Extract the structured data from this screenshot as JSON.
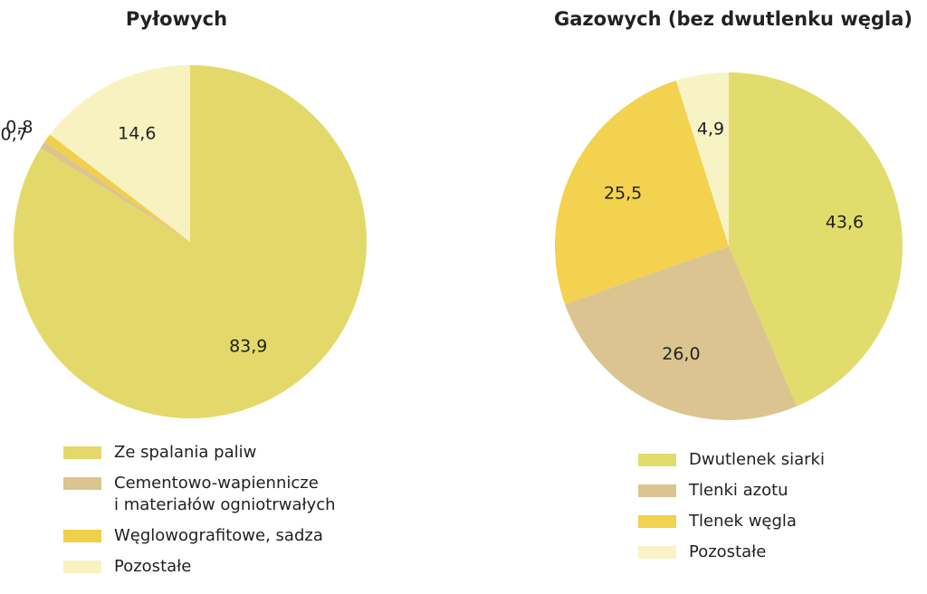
{
  "chart_data": [
    {
      "type": "pie",
      "title": "Pyłowych",
      "categories": [
        "Ze spalania paliw",
        "Cementowo-wapiennicze\ni materiałów ogniotrwałych",
        "Węglowografitowe, sadza",
        "Pozostałe"
      ],
      "values": [
        83.9,
        0.7,
        0.8,
        14.6
      ],
      "value_labels": [
        "83,9",
        "0,7",
        "0,8",
        "14,6"
      ],
      "colors": [
        "#e3d96a",
        "#dcc48e",
        "#f0cf4a",
        "#f7f2c0"
      ]
    },
    {
      "type": "pie",
      "title": "Gazowych (bez dwutlenku węgla)",
      "categories": [
        "Dwutlenek siarki",
        "Tlenki azotu",
        "Tlenek węgla",
        "Pozostałe"
      ],
      "values": [
        43.6,
        26.0,
        25.5,
        4.9
      ],
      "value_labels": [
        "43,6",
        "26,0",
        "25,5",
        "4,9"
      ],
      "colors": [
        "#e2dc6c",
        "#dcc490",
        "#f2d24e",
        "#f8f3c4"
      ]
    }
  ]
}
